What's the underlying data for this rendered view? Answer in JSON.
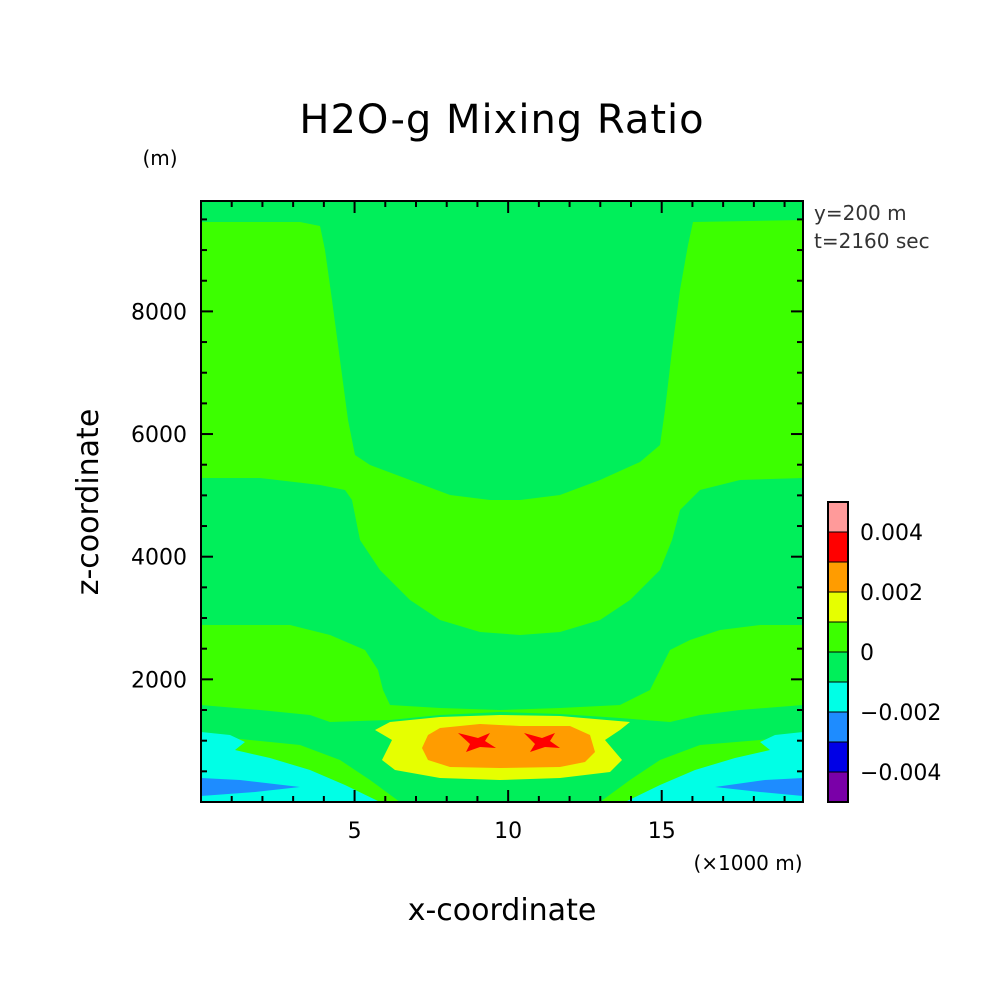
{
  "chart_data": {
    "type": "heatmap",
    "title": "H2O-g Mixing Ratio",
    "xlabel": "x-coordinate",
    "ylabel": "z-coordinate",
    "x_unit": "(×1000 m)",
    "y_unit": "(m)",
    "xlim": [
      0,
      19.6
    ],
    "ylim": [
      0,
      9800
    ],
    "x_ticks": [
      {
        "value": 5,
        "label": "5"
      },
      {
        "value": 10,
        "label": "10"
      },
      {
        "value": 15,
        "label": "15"
      }
    ],
    "y_ticks": [
      {
        "value": 2000,
        "label": "2000"
      },
      {
        "value": 4000,
        "label": "4000"
      },
      {
        "value": 6000,
        "label": "6000"
      },
      {
        "value": 8000,
        "label": "8000"
      }
    ],
    "annotations": [
      "y=200 m",
      "t=2160 sec"
    ],
    "colorbar": {
      "levels": [
        -0.005,
        -0.004,
        -0.003,
        -0.002,
        -0.001,
        0,
        0.001,
        0.002,
        0.003,
        0.004,
        0.005
      ],
      "colors": [
        "#7a00a8",
        "#0000e6",
        "#1e8cff",
        "#00ffe6",
        "#00ef5a",
        "#3cff00",
        "#e6ff00",
        "#ff9c00",
        "#ff0000",
        "#ff9a9a"
      ],
      "tick_labels": [
        {
          "value": 0.004,
          "label": "0.004"
        },
        {
          "value": 0.002,
          "label": "0.002"
        },
        {
          "value": 0,
          "label": "0"
        },
        {
          "value": -0.002,
          "label": "−0.002"
        },
        {
          "value": -0.004,
          "label": "−0.004"
        }
      ]
    },
    "contour_regions": [
      {
        "name": "upper-moist-column",
        "level": 0,
        "x_range": [
          4.1,
          15.6
        ],
        "z_range": [
          5000,
          9800
        ]
      },
      {
        "name": "mid-moist-band",
        "level": 0,
        "x_range": [
          0,
          19.6
        ],
        "z_range": [
          2800,
          5400
        ]
      },
      {
        "name": "low-level-dry-layer",
        "level": -0.002,
        "x_range": [
          0,
          19.6
        ],
        "z_range": [
          0,
          1200
        ]
      },
      {
        "name": "warm-positive-core",
        "level": 0.002,
        "x_range": [
          7.5,
          12.6
        ],
        "z_range": [
          600,
          1300
        ]
      },
      {
        "name": "max-positive-cells",
        "level": 0.003,
        "x_range": [
          8.8,
          12.0
        ],
        "z_range": [
          900,
          1300
        ]
      }
    ]
  }
}
